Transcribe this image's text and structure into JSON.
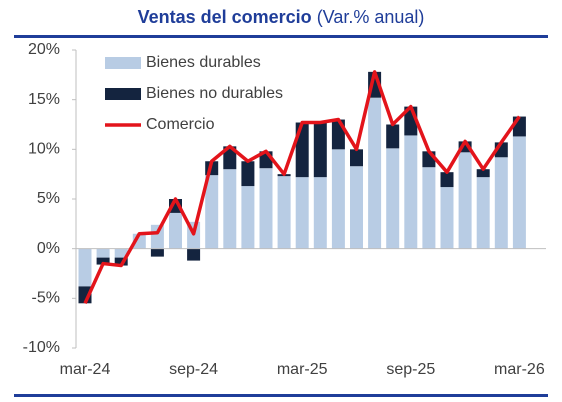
{
  "chart_data": {
    "type": "bar-line",
    "title": "Ventas del comercio",
    "subtitle": "(Var.% anual)",
    "categories": [
      "mar-24",
      null,
      null,
      null,
      null,
      null,
      "sep-24",
      null,
      null,
      null,
      null,
      null,
      "mar-25",
      null,
      null,
      null,
      null,
      null,
      "sep-25",
      null,
      null,
      null,
      null,
      null,
      "mar-26"
    ],
    "series": [
      {
        "name": "Bienes durables",
        "color": "#b8cce4",
        "kind": "bar",
        "values": [
          -3.8,
          -0.9,
          -0.9,
          1.5,
          2.4,
          3.6,
          2.7,
          7.4,
          8.0,
          6.3,
          8.1,
          7.3,
          7.2,
          7.2,
          10.0,
          8.3,
          15.2,
          10.1,
          11.4,
          8.2,
          6.2,
          9.7,
          7.2,
          9.2,
          11.3
        ]
      },
      {
        "name": "Bienes no durables",
        "color": "#14243f",
        "kind": "bar",
        "values": [
          -1.7,
          -0.7,
          -0.8,
          0,
          -0.8,
          1.4,
          -1.2,
          1.4,
          2.3,
          2.5,
          1.7,
          0.2,
          5.5,
          5.5,
          3.0,
          1.7,
          2.6,
          2.4,
          2.9,
          1.6,
          1.5,
          1.1,
          0.8,
          1.5,
          2.0
        ]
      },
      {
        "name": "Comercio",
        "color": "#e3141b",
        "kind": "line",
        "values": [
          -5.5,
          -1.5,
          -1.7,
          1.5,
          1.6,
          5.0,
          1.5,
          8.8,
          10.3,
          8.8,
          9.8,
          7.5,
          12.7,
          12.7,
          13.0,
          10.0,
          17.8,
          12.5,
          14.3,
          9.8,
          7.7,
          10.8,
          8.0,
          10.7,
          13.3
        ]
      }
    ],
    "ylim": [
      -10,
      20
    ],
    "yticks": [
      {
        "value": -10,
        "label": "-10%"
      },
      {
        "value": -5,
        "label": "-5%"
      },
      {
        "value": 0,
        "label": "0%"
      },
      {
        "value": 5,
        "label": "5%"
      },
      {
        "value": 10,
        "label": "10%"
      },
      {
        "value": 15,
        "label": "15%"
      },
      {
        "value": 20,
        "label": "20%"
      }
    ],
    "legend": "top-left"
  }
}
